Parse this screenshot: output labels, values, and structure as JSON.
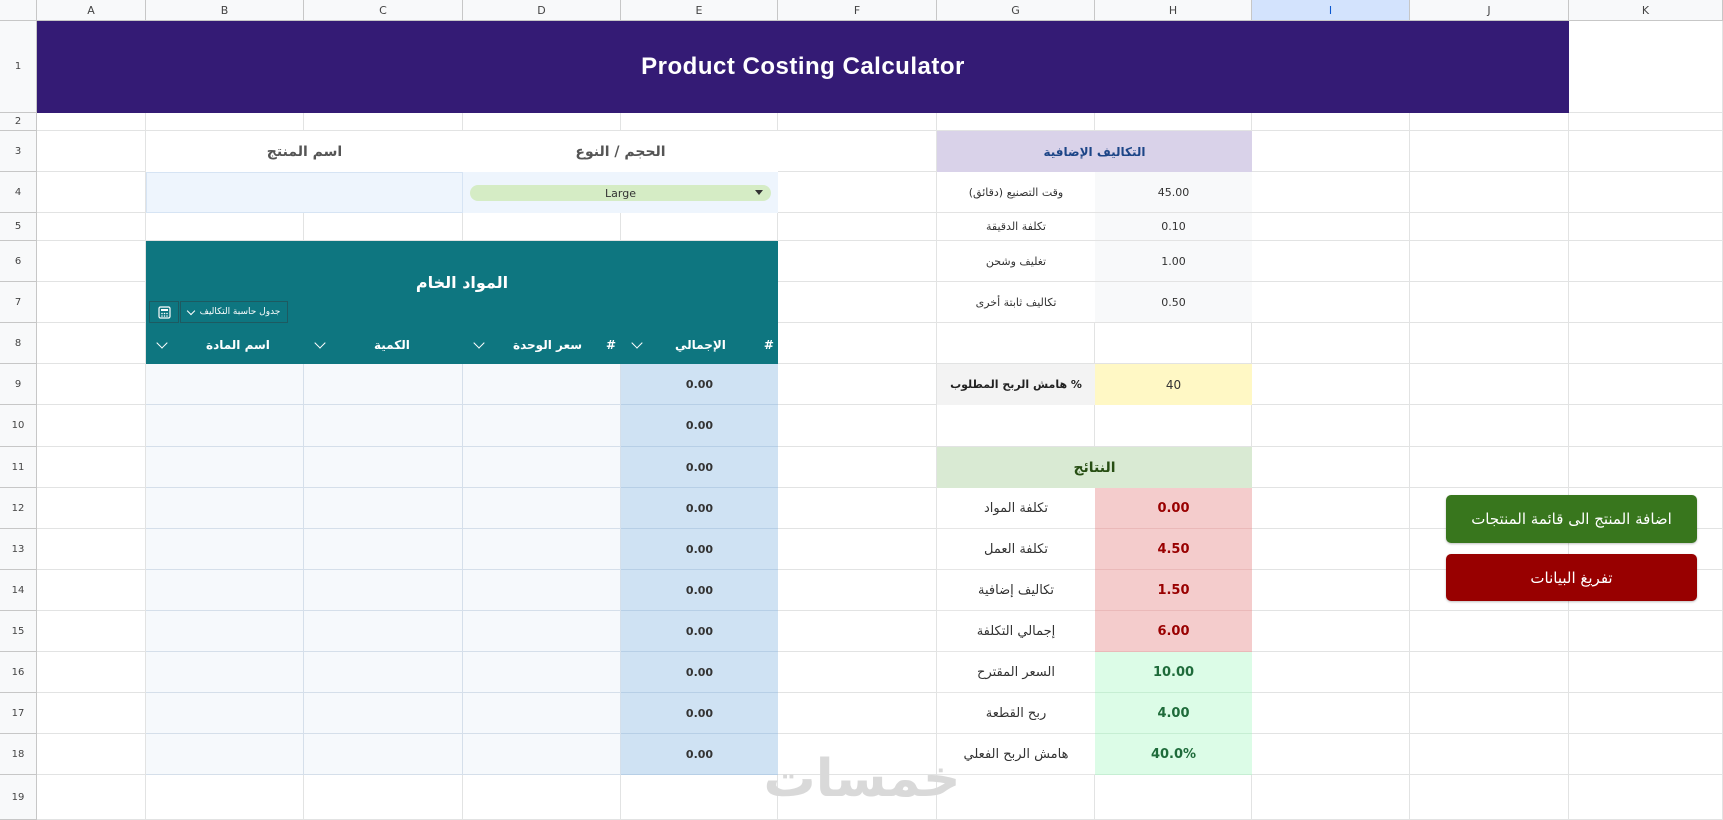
{
  "sheet": {
    "columns": [
      "A",
      "B",
      "C",
      "D",
      "E",
      "F",
      "G",
      "H",
      "I",
      "J",
      "K"
    ],
    "selected_column": "I",
    "rows": [
      "1",
      "2",
      "3",
      "4",
      "5",
      "6",
      "7",
      "8",
      "9",
      "10",
      "11",
      "12",
      "13",
      "14",
      "15",
      "16",
      "17",
      "18",
      "19"
    ]
  },
  "title": "Product Costing Calculator",
  "product": {
    "name_label": "اسم المنتج",
    "name_value": "",
    "size_label": "الحجم / النوع",
    "size_value": "Large"
  },
  "raw_materials": {
    "title": "المواد الخام",
    "table_chip": "جدول حاسبة التكاليف",
    "columns": {
      "material": "اسم المادة",
      "quantity": "الكمية",
      "unit_price": "سعر الوحدة",
      "total": "الإجمالي",
      "hash": "#"
    },
    "totals": [
      "0.00",
      "0.00",
      "0.00",
      "0.00",
      "0.00",
      "0.00",
      "0.00",
      "0.00",
      "0.00",
      "0.00"
    ]
  },
  "additional_costs": {
    "title": "التكاليف الإضافية",
    "items": [
      {
        "label": "وقت التصنيع (دقائق)",
        "value": "45.00"
      },
      {
        "label": "تكلفة الدقيقة",
        "value": "0.10"
      },
      {
        "label": "تغليف وشحن",
        "value": "1.00"
      },
      {
        "label": "تكاليف ثابتة أخرى",
        "value": "0.50"
      }
    ]
  },
  "margin": {
    "label": "هامش الربح المطلوب %",
    "value": "40"
  },
  "results": {
    "title": "النتائج",
    "items": [
      {
        "label": "تكلفة المواد",
        "value": "0.00",
        "tone": "red"
      },
      {
        "label": "تكلفة العمل",
        "value": "4.50",
        "tone": "red"
      },
      {
        "label": "تكاليف إضافية",
        "value": "1.50",
        "tone": "red"
      },
      {
        "label": "إجمالي التكلفة",
        "value": "6.00",
        "tone": "red"
      },
      {
        "label": "السعر المقترح",
        "value": "10.00",
        "tone": "green"
      },
      {
        "label": "ربح القطعة",
        "value": "4.00",
        "tone": "green"
      },
      {
        "label": "هامش الربح الفعلي",
        "value": "40.0%",
        "tone": "green"
      }
    ]
  },
  "buttons": {
    "add_product": "اضافة المنتج الى قائمة المنتجات",
    "clear_data": "تفريغ البيانات"
  },
  "watermark": "خمسات",
  "colors": {
    "banner": "#341b75",
    "raw_panel": "#0e7680",
    "btn_green": "#38761d",
    "btn_red": "#980000"
  },
  "icons": [
    "calculator-icon",
    "chevron-down-icon"
  ]
}
